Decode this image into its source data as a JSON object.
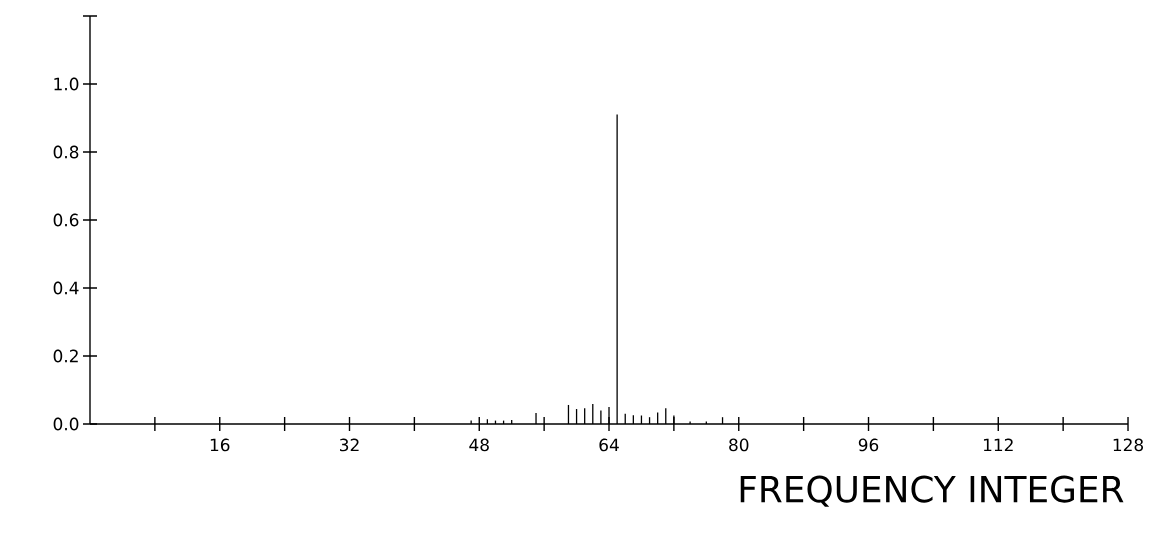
{
  "chart_data": {
    "type": "bar",
    "xlabel": "FREQUENCY INTEGER",
    "x": [
      47,
      49,
      50,
      51,
      52,
      55,
      59,
      60,
      61,
      62,
      63,
      64,
      65,
      66,
      67,
      68,
      69,
      70,
      71,
      72,
      74,
      76,
      78
    ],
    "values": [
      0.01,
      0.014,
      0.01,
      0.01,
      0.012,
      0.032,
      0.056,
      0.044,
      0.046,
      0.059,
      0.04,
      0.05,
      0.91,
      0.03,
      0.026,
      0.025,
      0.02,
      0.034,
      0.046,
      0.025,
      0.007,
      0.007,
      0.02
    ],
    "color": "#000000",
    "xlim": [
      0,
      128
    ],
    "xticks": [
      {
        "value": 8,
        "label": null
      },
      16,
      {
        "value": 24,
        "label": null
      },
      32,
      {
        "value": 40,
        "label": null
      },
      48,
      {
        "value": 56,
        "label": null
      },
      64,
      {
        "value": 72,
        "label": null
      },
      80,
      {
        "value": 88,
        "label": null
      },
      96,
      {
        "value": 104,
        "label": null
      },
      112,
      {
        "value": 120,
        "label": null
      },
      128
    ],
    "ylim": [
      0,
      1.2
    ],
    "yticks": [
      {
        "value": 0,
        "label": "0.0"
      },
      {
        "value": 0.2,
        "label": "0.2"
      },
      {
        "value": 0.4,
        "label": "0.4"
      },
      {
        "value": 0.6,
        "label": "0.6"
      },
      {
        "value": 0.8,
        "label": "0.8"
      },
      {
        "value": 1.0,
        "label": "1.0"
      },
      {
        "value": 1.2,
        "label": null
      }
    ],
    "grid": false
  }
}
